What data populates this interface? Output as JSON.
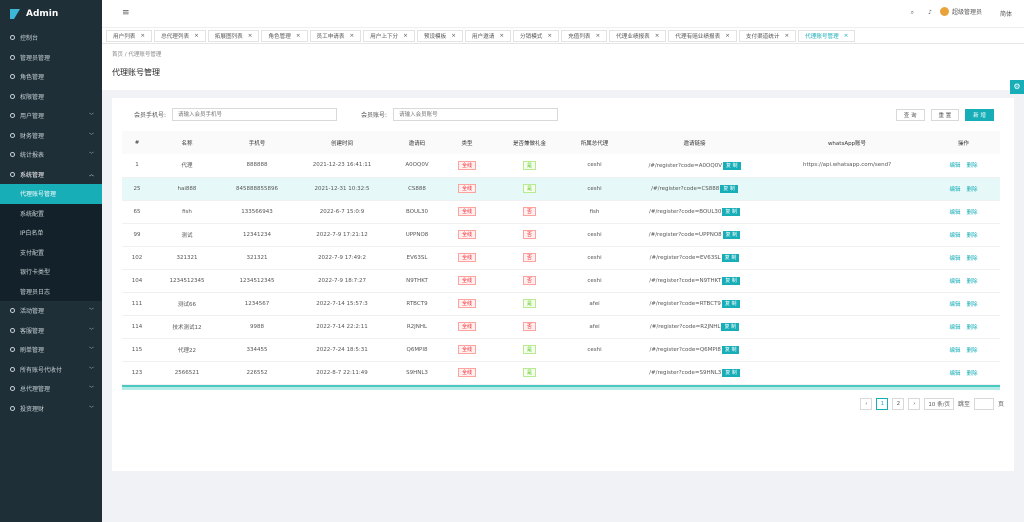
{
  "sidebar": {
    "logo": "Admin",
    "items": [
      {
        "label": "控制台"
      },
      {
        "label": "管理员管理"
      },
      {
        "label": "角色管理"
      },
      {
        "label": "权限管理"
      },
      {
        "label": "用户管理",
        "arrow": true
      },
      {
        "label": "财务管理",
        "arrow": true
      },
      {
        "label": "统计报表",
        "arrow": true
      },
      {
        "label": "系统管理",
        "open": true,
        "children": [
          "代理账号管理",
          "系统配置",
          "IP白名单",
          "支付配置",
          "银行卡类型",
          "管理员日志"
        ]
      },
      {
        "label": "活动管理",
        "arrow": true
      },
      {
        "label": "客服管理",
        "arrow": true
      },
      {
        "label": "刷单管理",
        "arrow": true
      },
      {
        "label": "所有账号代收付",
        "arrow": true
      },
      {
        "label": "总代理管理",
        "arrow": true
      },
      {
        "label": "投资理财",
        "arrow": true
      }
    ]
  },
  "header": {
    "user": "超级管理员",
    "language": "简体"
  },
  "tabs": [
    "用户列表",
    "总代理列表",
    "拓展图列表",
    "角色管理",
    "员工申请表",
    "用户上下分",
    "预设模板",
    "用户邀请",
    "分销模式",
    "充值列表",
    "代理业绩报表",
    "代理有赔业绩报表",
    "支付渠道统计",
    "代理账号管理"
  ],
  "breadcrumb": [
    "首页",
    "代理账号管理"
  ],
  "page_title": "代理账号管理",
  "form": {
    "phone_label": "会员手机号:",
    "phone_placeholder": "请输入会员手机号",
    "account_label": "会员账号:",
    "account_placeholder": "请输入会员账号",
    "search": "查 询",
    "reset": "重 置",
    "add": "新 增"
  },
  "table": {
    "headers": [
      "#",
      "名称",
      "手机号",
      "创建时间",
      "邀请码",
      "类型",
      "是否兼做礼金",
      "所属总代理",
      "邀请链接",
      "whatsApp账号",
      "操作"
    ],
    "copy_label": "复 制",
    "edit_label": "编辑",
    "delete_label": "删除",
    "rows": [
      {
        "id": "1",
        "name": "代理",
        "phone": "888888",
        "created": "2021-12-23 16:41:11",
        "code": "A0OQ0V",
        "type": "全线",
        "gift": "是",
        "agent": "ceshi",
        "link": "/#/register?code=A0OQ0V",
        "whatsapp": "https://api.whatsapp.com/send?"
      },
      {
        "id": "25",
        "name": "hai888",
        "phone": "845888855896",
        "created": "2021-12-31 10:32:5",
        "code": "CS888",
        "type": "全线",
        "gift": "是",
        "agent": "ceshi",
        "link": "/#/register?code=CS888"
      },
      {
        "id": "65",
        "name": "fish",
        "phone": "133566943",
        "created": "2022-6-7 15:0:9",
        "code": "BOUL30",
        "type": "全线",
        "gift": "否",
        "agent": "fish",
        "link": "/#/register?code=BOUL30"
      },
      {
        "id": "99",
        "name": "测试",
        "phone": "12341234",
        "created": "2022-7-9 17:21:12",
        "code": "UPPNO8",
        "type": "全线",
        "gift": "否",
        "agent": "ceshi",
        "link": "/#/register?code=UPPNO8"
      },
      {
        "id": "102",
        "name": "321321",
        "phone": "321321",
        "created": "2022-7-9 17:49:2",
        "code": "EV63SL",
        "type": "全线",
        "gift": "否",
        "agent": "ceshi",
        "link": "/#/register?code=EV63SL"
      },
      {
        "id": "104",
        "name": "1234512345",
        "phone": "1234512345",
        "created": "2022-7-9 18:7:27",
        "code": "N9THKT",
        "type": "全线",
        "gift": "否",
        "agent": "ceshi",
        "link": "/#/register?code=N9THKT"
      },
      {
        "id": "111",
        "name": "测试66",
        "phone": "1234567",
        "created": "2022-7-14 15:57:3",
        "code": "RTBCT9",
        "type": "全线",
        "gift": "是",
        "agent": "afei",
        "link": "/#/register?code=RTBCT9"
      },
      {
        "id": "114",
        "name": "技术测试12",
        "phone": "9988",
        "created": "2022-7-14 22:2:11",
        "code": "R2JNHL",
        "type": "全线",
        "gift": "否",
        "agent": "afei",
        "link": "/#/register?code=R2JNHL"
      },
      {
        "id": "115",
        "name": "代理22",
        "phone": "334455",
        "created": "2022-7-24 18:5:31",
        "code": "Q6MPI8",
        "type": "全线",
        "gift": "是",
        "agent": "ceshi",
        "link": "/#/register?code=Q6MPI8"
      },
      {
        "id": "123",
        "name": "2566521",
        "phone": "226552",
        "created": "2022-8-7 22:11:49",
        "code": "S9HNL3",
        "type": "全线",
        "gift": "是",
        "link": "/#/register?code=S9HNL3"
      }
    ]
  },
  "pagination": {
    "pages": [
      "1",
      "2"
    ],
    "page_size": "10 条/页",
    "goto": "跳至",
    "page_unit": "页"
  }
}
